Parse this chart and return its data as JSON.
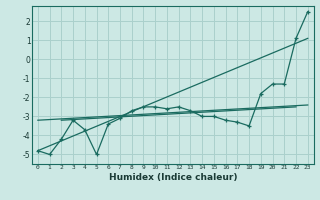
{
  "xlabel": "Humidex (Indice chaleur)",
  "bg_color": "#cce8e4",
  "grid_color": "#aad0cc",
  "line_color": "#1a6b60",
  "xlim": [
    -0.5,
    23.5
  ],
  "ylim": [
    -5.5,
    2.8
  ],
  "x_ticks": [
    0,
    1,
    2,
    3,
    4,
    5,
    6,
    7,
    8,
    9,
    10,
    11,
    12,
    13,
    14,
    15,
    16,
    17,
    18,
    19,
    20,
    21,
    22,
    23
  ],
  "y_ticks": [
    -5,
    -4,
    -3,
    -2,
    -1,
    0,
    1,
    2
  ],
  "main_x": [
    0,
    1,
    2,
    3,
    4,
    5,
    6,
    7,
    8,
    9,
    10,
    11,
    12,
    13,
    14,
    15,
    16,
    17,
    18,
    19,
    20,
    21,
    22,
    23
  ],
  "main_y": [
    -4.8,
    -5.0,
    -4.2,
    -3.2,
    -3.7,
    -5.0,
    -3.4,
    -3.1,
    -2.7,
    -2.5,
    -2.5,
    -2.6,
    -2.5,
    -2.7,
    -3.0,
    -3.0,
    -3.2,
    -3.3,
    -3.5,
    -1.8,
    -1.3,
    -1.3,
    1.1,
    2.5
  ],
  "trend1_x": [
    0,
    23
  ],
  "trend1_y": [
    -4.8,
    1.1
  ],
  "trend2_x": [
    0,
    23
  ],
  "trend2_y": [
    -3.2,
    -2.4
  ],
  "trend3_x": [
    2,
    22
  ],
  "trend3_y": [
    -3.2,
    -2.5
  ]
}
